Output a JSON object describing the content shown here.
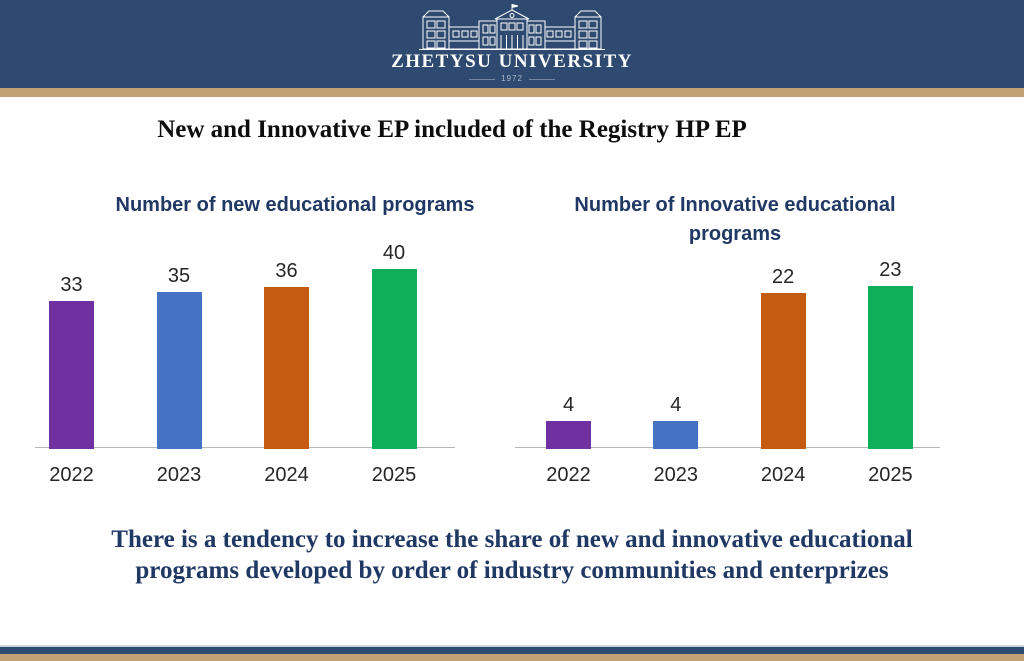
{
  "header": {
    "university_name": "ZHETYSU UNIVERSITY",
    "established_year": "1972"
  },
  "slide": {
    "title": "New and Innovative EP included of the Registry HP EP",
    "conclusion_lines": [
      "There is a tendency to increase the share of new and innovative educational",
      "programs developed by order of industry communities and enterprizes"
    ]
  },
  "colors": {
    "header_bg": "#2e4a71",
    "accent_bar": "#c1a076",
    "chart_title_text": "#1f3864",
    "conclusion_text": "#1f3864",
    "main_title_text": "#0d0d0d",
    "axis_line": "#b7b7b7"
  },
  "chart_data": [
    {
      "type": "bar",
      "title": "Number of new educational programs",
      "categories": [
        "2022",
        "2023",
        "2024",
        "2025"
      ],
      "values": [
        33,
        35,
        36,
        40
      ],
      "colors": [
        "#7030a0",
        "#4472c4",
        "#c55a11",
        "#0fae58"
      ],
      "data_labels": true,
      "grid": false,
      "legend": "none",
      "ylim": [
        0,
        44
      ]
    },
    {
      "type": "bar",
      "title": "Number of Innovative educational programs",
      "categories": [
        "2022",
        "2023",
        "2024",
        "2025"
      ],
      "values": [
        4,
        4,
        22,
        23
      ],
      "colors": [
        "#7030a0",
        "#4472c4",
        "#c55a11",
        "#0fae58"
      ],
      "data_labels": true,
      "grid": false,
      "legend": "none",
      "ylim": [
        0,
        25
      ]
    }
  ]
}
